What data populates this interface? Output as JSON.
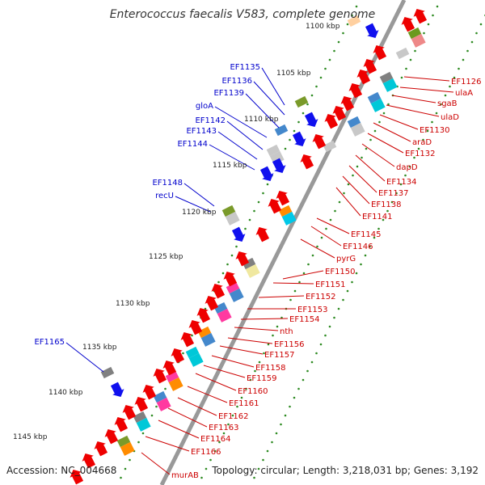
{
  "title": "Enterococcus faecalis V583, complete genome",
  "footer": {
    "accession": "Accession: NC_004668",
    "topology": "Topology: circular; Length: 3,218,031 bp; Genes: 3,192"
  },
  "colors": {
    "backbone": "#999999",
    "forward_label": "#0000cc",
    "reverse_label": "#cc0000",
    "tick_dots": "#2e8b22",
    "forward_arrow": "#1010ee",
    "reverse_arrow": "#ee0000"
  },
  "kbp_ticks": [
    "1100 kbp",
    "1105 kbp",
    "1110 kbp",
    "1115 kbp",
    "1120 kbp",
    "1125 kbp",
    "1130 kbp",
    "1135 kbp",
    "1140 kbp",
    "1145 kbp"
  ],
  "forward_labels": [
    "EF1135",
    "EF1136",
    "EF1139",
    "gloA",
    "EF1142",
    "EF1143",
    "EF1144",
    "EF1148",
    "recU",
    "EF1165"
  ],
  "reverse_labels": [
    "EF1126",
    "ulaA",
    "sgaB",
    "ulaD",
    "EF1130",
    "araD",
    "EF1132",
    "dapD",
    "EF1134",
    "EF1137",
    "EF1138",
    "EF1141",
    "EF1145",
    "EF1146",
    "pyrG",
    "EF1150",
    "EF1151",
    "EF1152",
    "EF1153",
    "EF1154",
    "nth",
    "EF1156",
    "EF1157",
    "EF1158",
    "EF1159",
    "EF1160",
    "EF1161",
    "EF1162",
    "EF1163",
    "EF1164",
    "EF1166",
    "murAB"
  ]
}
